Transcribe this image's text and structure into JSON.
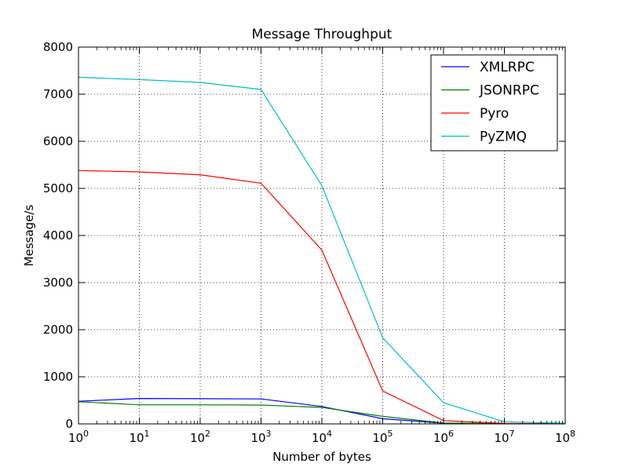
{
  "chart_data": {
    "type": "line",
    "title": "Message Throughput",
    "xlabel": "Number of bytes",
    "ylabel": "Message/s",
    "x_scale": "log",
    "x": [
      1,
      10,
      100,
      1000,
      10000,
      100000,
      1000000,
      10000000,
      100000000
    ],
    "xlim": [
      1,
      100000000
    ],
    "ylim": [
      0,
      8000
    ],
    "x_ticks": [
      {
        "base": "10",
        "exp": "0",
        "value": 1
      },
      {
        "base": "10",
        "exp": "1",
        "value": 10
      },
      {
        "base": "10",
        "exp": "2",
        "value": 100
      },
      {
        "base": "10",
        "exp": "3",
        "value": 1000
      },
      {
        "base": "10",
        "exp": "4",
        "value": 10000
      },
      {
        "base": "10",
        "exp": "5",
        "value": 100000
      },
      {
        "base": "10",
        "exp": "6",
        "value": 1000000
      },
      {
        "base": "10",
        "exp": "7",
        "value": 10000000
      },
      {
        "base": "10",
        "exp": "8",
        "value": 100000000
      }
    ],
    "y_ticks": [
      {
        "label": "0",
        "value": 0
      },
      {
        "label": "1000",
        "value": 1000
      },
      {
        "label": "2000",
        "value": 2000
      },
      {
        "label": "3000",
        "value": 3000
      },
      {
        "label": "4000",
        "value": 4000
      },
      {
        "label": "5000",
        "value": 5000
      },
      {
        "label": "6000",
        "value": 6000
      },
      {
        "label": "7000",
        "value": 7000
      },
      {
        "label": "8000",
        "value": 8000
      }
    ],
    "grid": true,
    "legend_position": "top-right",
    "series": [
      {
        "name": "XMLRPC",
        "color": "#0000ff",
        "values": [
          480,
          540,
          535,
          530,
          370,
          110,
          15,
          5,
          2
        ]
      },
      {
        "name": "JSONRPC",
        "color": "#008000",
        "values": [
          470,
          405,
          405,
          400,
          350,
          160,
          20,
          5,
          2
        ]
      },
      {
        "name": "Pyro",
        "color": "#ff0000",
        "values": [
          5380,
          5350,
          5290,
          5110,
          3690,
          700,
          70,
          10,
          2
        ]
      },
      {
        "name": "PyZMQ",
        "color": "#00bfbf",
        "values": [
          7360,
          7310,
          7250,
          7100,
          5060,
          1830,
          450,
          45,
          15
        ]
      }
    ]
  }
}
